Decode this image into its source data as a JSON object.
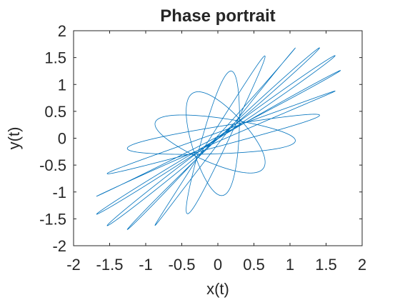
{
  "chart_data": {
    "type": "line",
    "title": "Phase portrait",
    "xlabel": "x(t)",
    "ylabel": "y(t)",
    "xlim": [
      -2,
      2
    ],
    "ylim": [
      -2,
      2
    ],
    "xticks": [
      "-2",
      "-1.5",
      "-1",
      "-0.5",
      "0",
      "0.5",
      "1",
      "1.5",
      "2"
    ],
    "yticks": [
      "2",
      "1.5",
      "1",
      "0.5",
      "0",
      "-0.5",
      "-1",
      "-1.5",
      "-2"
    ],
    "grid": false,
    "legend": "none",
    "series": [
      {
        "curve": "quasi-periodic Lissajous trajectory",
        "x": "cos(t) + 0.7*cos(1.1*t)",
        "y": "cos(t + 0.6) + 0.7*cos(1.1*t - 0.9)",
        "t_range": [
          0,
          640
        ],
        "x_extent": [
          -1.7,
          1.7
        ],
        "y_extent": [
          -1.63,
          1.63
        ],
        "color": "#0072BD"
      }
    ]
  }
}
